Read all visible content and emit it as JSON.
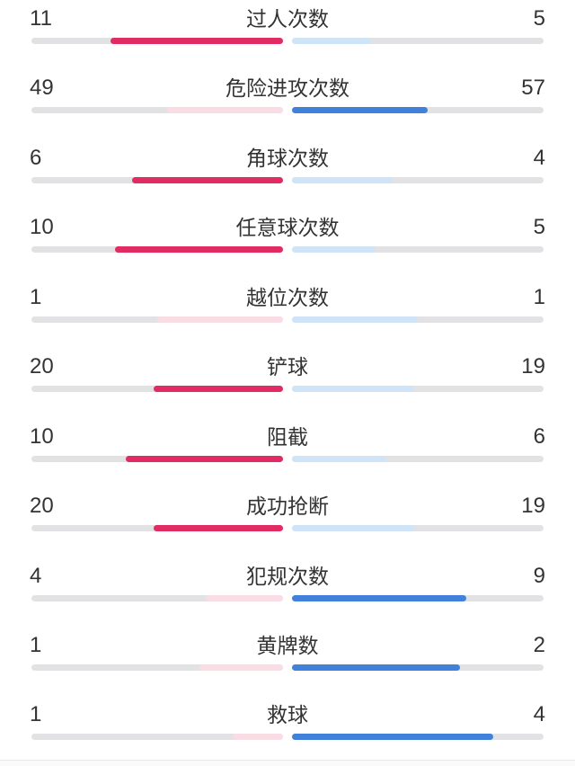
{
  "chart_data": {
    "type": "bar",
    "orientation": "horizontal-paired-diverging-from-center",
    "description": "Football match statistics comparison, home team (left, pink) vs away team (right, blue); bar fill length = value / (home+away) of its row; saturated color marks the larger value, pale color the smaller or tied value",
    "categories": [
      "过人次数",
      "危险进攻次数",
      "角球次数",
      "任意球次数",
      "越位次数",
      "铲球",
      "阻截",
      "成功抢断",
      "犯规次数",
      "黄牌数",
      "救球"
    ],
    "series": [
      {
        "name": "home",
        "values": [
          11,
          49,
          6,
          10,
          1,
          20,
          10,
          20,
          4,
          1,
          1
        ]
      },
      {
        "name": "away",
        "values": [
          5,
          57,
          4,
          5,
          1,
          19,
          6,
          19,
          9,
          2,
          4
        ]
      }
    ],
    "legend": "none",
    "grid": "off"
  },
  "colors": {
    "home_strong": "#e02b63",
    "home_soft": "#fadce4",
    "away_strong": "#4181d9",
    "away_soft": "#cfe4f7",
    "track": "#e2e2e4",
    "text": "#333333"
  }
}
